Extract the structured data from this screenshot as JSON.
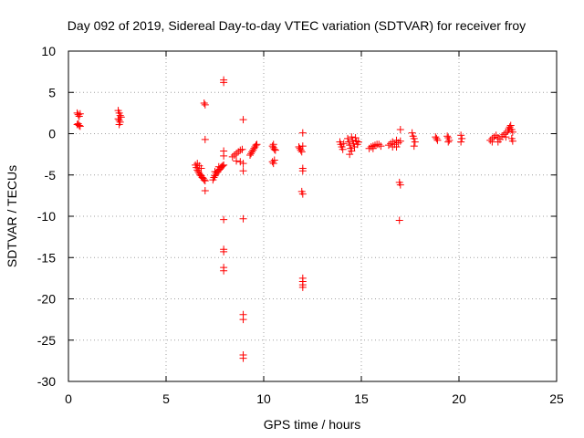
{
  "chart_data": {
    "type": "scatter",
    "title": "Day 092 of 2019, Sidereal Day-to-day VTEC variation (SDTVAR) for receiver froy",
    "xlabel": "GPS time / hours",
    "ylabel": "SDTVAR / TECUs",
    "xlim": [
      0,
      25
    ],
    "ylim": [
      -30,
      10
    ],
    "xticks": [
      0,
      5,
      10,
      15,
      20,
      25
    ],
    "yticks": [
      -30,
      -25,
      -20,
      -15,
      -10,
      -5,
      0,
      5,
      10
    ],
    "grid": true,
    "marker": "+",
    "color": "#ff0000",
    "series": [
      {
        "name": "SDTVAR",
        "points": [
          [
            0.45,
            2.5
          ],
          [
            0.5,
            2.3
          ],
          [
            0.55,
            2.1
          ],
          [
            0.6,
            2.4
          ],
          [
            0.5,
            1.2
          ],
          [
            0.55,
            1.0
          ],
          [
            0.6,
            0.9
          ],
          [
            0.45,
            1.1
          ],
          [
            2.55,
            2.8
          ],
          [
            2.6,
            2.5
          ],
          [
            2.65,
            2.2
          ],
          [
            2.7,
            2.0
          ],
          [
            2.55,
            1.8
          ],
          [
            2.6,
            1.6
          ],
          [
            2.65,
            1.4
          ],
          [
            2.6,
            1.1
          ],
          [
            6.5,
            -3.8
          ],
          [
            6.55,
            -4.1
          ],
          [
            6.6,
            -4.4
          ],
          [
            6.65,
            -4.6
          ],
          [
            6.7,
            -4.8
          ],
          [
            6.75,
            -5.0
          ],
          [
            6.8,
            -5.1
          ],
          [
            6.85,
            -5.3
          ],
          [
            6.9,
            -5.4
          ],
          [
            6.95,
            -5.6
          ],
          [
            7.0,
            -5.7
          ],
          [
            6.6,
            -3.6
          ],
          [
            6.7,
            -3.9
          ],
          [
            6.8,
            -4.2
          ],
          [
            6.95,
            3.7
          ],
          [
            7.0,
            3.5
          ],
          [
            7.0,
            -0.7
          ],
          [
            7.0,
            -6.9
          ],
          [
            7.4,
            -5.6
          ],
          [
            7.45,
            -5.3
          ],
          [
            7.5,
            -5.1
          ],
          [
            7.55,
            -4.9
          ],
          [
            7.6,
            -4.7
          ],
          [
            7.65,
            -4.6
          ],
          [
            7.7,
            -4.4
          ],
          [
            7.75,
            -4.3
          ],
          [
            7.8,
            -4.1
          ],
          [
            7.85,
            -4.0
          ],
          [
            7.9,
            -3.9
          ],
          [
            7.95,
            -3.8
          ],
          [
            7.5,
            -4.6
          ],
          [
            7.7,
            -4.0
          ],
          [
            7.95,
            6.5
          ],
          [
            7.95,
            6.2
          ],
          [
            7.95,
            -2.1
          ],
          [
            7.95,
            -2.7
          ],
          [
            7.95,
            -10.4
          ],
          [
            7.95,
            -14.0
          ],
          [
            7.95,
            -14.3
          ],
          [
            7.95,
            -16.2
          ],
          [
            7.95,
            -16.6
          ],
          [
            8.4,
            -2.8
          ],
          [
            8.5,
            -2.6
          ],
          [
            8.6,
            -2.4
          ],
          [
            8.7,
            -2.2
          ],
          [
            8.8,
            -2.0
          ],
          [
            8.9,
            -1.9
          ],
          [
            8.6,
            -3.3
          ],
          [
            8.8,
            -3.4
          ],
          [
            8.95,
            -3.6
          ],
          [
            8.95,
            -4.5
          ],
          [
            8.95,
            1.7
          ],
          [
            8.95,
            -10.3
          ],
          [
            8.95,
            -21.9
          ],
          [
            8.95,
            -22.5
          ],
          [
            8.95,
            -26.8
          ],
          [
            8.95,
            -27.2
          ],
          [
            9.3,
            -2.6
          ],
          [
            9.35,
            -2.4
          ],
          [
            9.4,
            -2.2
          ],
          [
            9.45,
            -2.0
          ],
          [
            9.5,
            -1.8
          ],
          [
            9.55,
            -1.6
          ],
          [
            9.6,
            -1.4
          ],
          [
            9.65,
            -1.3
          ],
          [
            10.45,
            -1.5
          ],
          [
            10.5,
            -1.7
          ],
          [
            10.55,
            -1.9
          ],
          [
            10.6,
            -2.0
          ],
          [
            10.5,
            -1.3
          ],
          [
            10.45,
            -3.4
          ],
          [
            10.5,
            -3.6
          ],
          [
            10.55,
            -3.2
          ],
          [
            11.8,
            -1.6
          ],
          [
            11.85,
            -1.8
          ],
          [
            11.9,
            -2.0
          ],
          [
            11.95,
            -2.2
          ],
          [
            12.0,
            -1.5
          ],
          [
            12.0,
            0.1
          ],
          [
            12.0,
            -4.2
          ],
          [
            12.0,
            -4.5
          ],
          [
            11.95,
            -7.0
          ],
          [
            12.0,
            -7.3
          ],
          [
            12.0,
            -17.5
          ],
          [
            12.0,
            -17.9
          ],
          [
            12.0,
            -18.3
          ],
          [
            12.0,
            -18.6
          ],
          [
            13.9,
            -1.0
          ],
          [
            13.95,
            -1.3
          ],
          [
            14.0,
            -1.6
          ],
          [
            14.05,
            -1.9
          ],
          [
            14.1,
            -1.2
          ],
          [
            14.3,
            -0.6
          ],
          [
            14.35,
            -1.0
          ],
          [
            14.4,
            -1.4
          ],
          [
            14.45,
            -1.8
          ],
          [
            14.5,
            -2.1
          ],
          [
            14.55,
            -0.8
          ],
          [
            14.6,
            -1.2
          ],
          [
            14.65,
            -1.6
          ],
          [
            14.7,
            -0.5
          ],
          [
            14.75,
            -0.9
          ],
          [
            14.8,
            -1.3
          ],
          [
            14.85,
            -1.0
          ],
          [
            14.4,
            -2.5
          ],
          [
            14.5,
            -0.4
          ],
          [
            15.4,
            -1.8
          ],
          [
            15.5,
            -1.6
          ],
          [
            15.6,
            -1.5
          ],
          [
            15.7,
            -1.4
          ],
          [
            15.8,
            -1.3
          ],
          [
            15.9,
            -1.3
          ],
          [
            16.0,
            -1.5
          ],
          [
            15.6,
            -1.8
          ],
          [
            16.4,
            -1.4
          ],
          [
            16.5,
            -1.2
          ],
          [
            16.6,
            -1.0
          ],
          [
            16.7,
            -1.3
          ],
          [
            16.8,
            -1.6
          ],
          [
            16.9,
            -1.1
          ],
          [
            17.0,
            -0.9
          ],
          [
            16.6,
            -1.6
          ],
          [
            16.8,
            -0.8
          ],
          [
            17.0,
            0.5
          ],
          [
            16.95,
            -5.9
          ],
          [
            17.0,
            -6.2
          ],
          [
            16.95,
            -10.5
          ],
          [
            17.6,
            0.1
          ],
          [
            17.65,
            -0.3
          ],
          [
            17.7,
            -0.6
          ],
          [
            17.75,
            -1.0
          ],
          [
            17.7,
            -1.5
          ],
          [
            18.8,
            -0.4
          ],
          [
            18.85,
            -0.6
          ],
          [
            18.9,
            -0.8
          ],
          [
            19.4,
            -0.3
          ],
          [
            19.45,
            -0.5
          ],
          [
            19.5,
            -0.8
          ],
          [
            19.45,
            -1.0
          ],
          [
            20.1,
            -0.2
          ],
          [
            20.15,
            -0.6
          ],
          [
            20.1,
            -1.0
          ],
          [
            21.6,
            -0.8
          ],
          [
            21.7,
            -0.6
          ],
          [
            21.8,
            -0.4
          ],
          [
            21.9,
            -0.2
          ],
          [
            22.0,
            -0.5
          ],
          [
            22.1,
            -0.7
          ],
          [
            22.2,
            -0.3
          ],
          [
            22.3,
            -0.1
          ],
          [
            22.4,
            0.1
          ],
          [
            22.5,
            0.3
          ],
          [
            22.55,
            0.6
          ],
          [
            22.6,
            0.8
          ],
          [
            22.65,
            1.0
          ],
          [
            22.7,
            0.5
          ],
          [
            22.75,
            0.2
          ],
          [
            22.7,
            -0.6
          ],
          [
            22.75,
            -0.9
          ],
          [
            22.4,
            -0.4
          ],
          [
            21.7,
            -1.0
          ],
          [
            22.0,
            -1.0
          ]
        ]
      }
    ]
  }
}
